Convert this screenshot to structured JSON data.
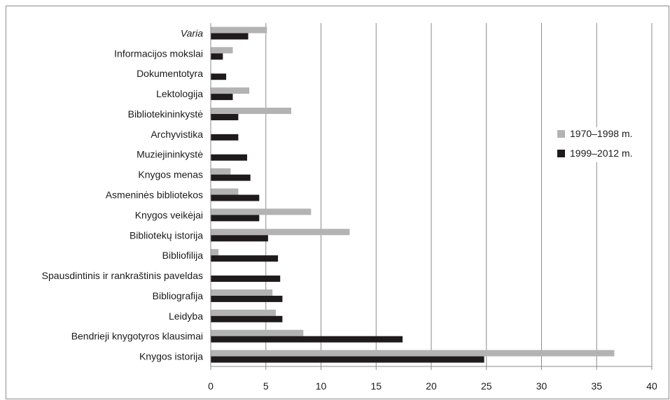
{
  "chart_data": {
    "type": "bar",
    "orientation": "horizontal",
    "categories": [
      "Varia",
      "Informacijos mokslai",
      "Dokumentotyra",
      "Lektologija",
      "Bibliotekininkystė",
      "Archyvistika",
      "Muziejininkystė",
      "Knygos menas",
      "Asmeninės bibliotekos",
      "Knygos veikėjai",
      "Bibliotekų istorija",
      "Bibliofilija",
      "Spausdintinis ir rankraštinis paveldas",
      "Bibliografija",
      "Leidyba",
      "Bendrieji knygotyros klausimai",
      "Knygos istorija"
    ],
    "italic_categories": [
      "Varia"
    ],
    "series": [
      {
        "name": "1970–1998 m.",
        "color": "#b3b3b3",
        "values": [
          5.1,
          2.0,
          0,
          3.5,
          7.3,
          0,
          0,
          1.8,
          2.5,
          9.1,
          12.6,
          0.7,
          0,
          5.6,
          5.9,
          8.4,
          36.6
        ]
      },
      {
        "name": "1999–2012 m.",
        "color": "#1f1a1c",
        "values": [
          3.4,
          1.1,
          1.4,
          2.0,
          2.5,
          2.5,
          3.3,
          3.6,
          4.4,
          4.4,
          5.2,
          6.1,
          6.3,
          6.5,
          6.5,
          17.4,
          24.8
        ]
      }
    ],
    "xlim": [
      0,
      40
    ],
    "xticks": [
      "0",
      "5",
      "10",
      "15",
      "20",
      "25",
      "30",
      "35",
      "40"
    ],
    "grid": "vertical",
    "legend": "right"
  }
}
